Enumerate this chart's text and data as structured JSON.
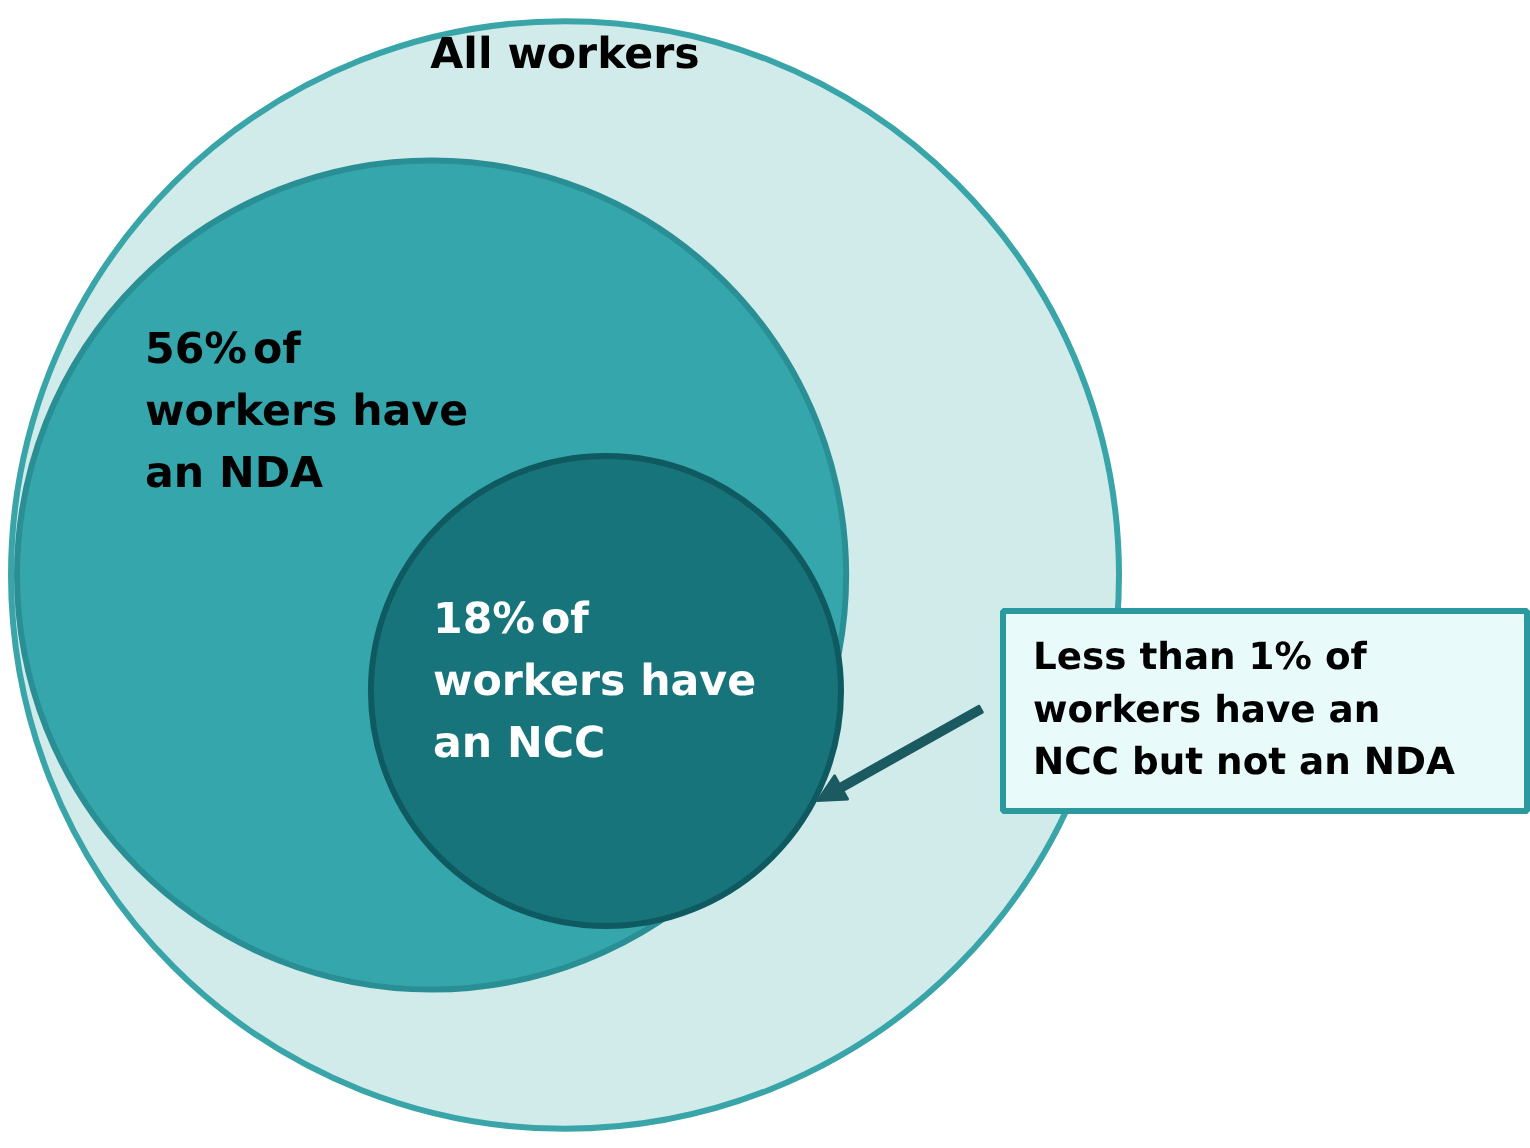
{
  "chart_data": {
    "type": "other",
    "categories": [
      "All workers",
      "of workers have an NDA",
      "of workers have an NCC"
    ],
    "values": [
      null,
      56,
      18
    ],
    "value_labels": [
      null,
      "56%",
      "18%"
    ],
    "colors": [
      "#d1ebeb",
      "#35a7ac",
      "#17747a"
    ],
    "annotations": [
      "Less than 1% of workers have an NCC but not an NDA"
    ]
  }
}
